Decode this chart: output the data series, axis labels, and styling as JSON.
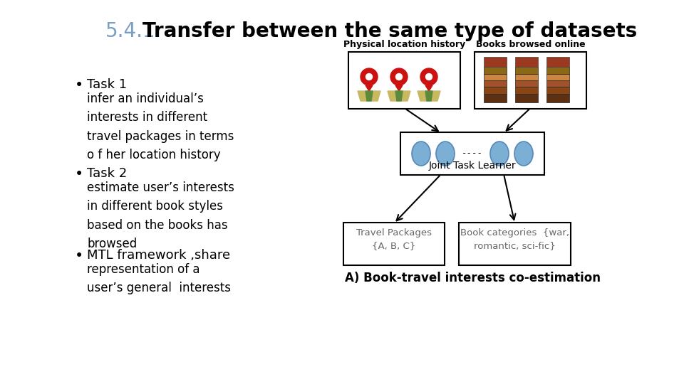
{
  "title_prefix": "5.4.1",
  "title_prefix_color": "#7B9EC4",
  "title_text": "Transfer between the same type of datasets",
  "title_color": "#000000",
  "title_fontsize": 20,
  "bg_color": "#ffffff",
  "bullet_points": [
    {
      "header": "Task 1",
      "body": "infer an individual’s\ninterests in different\ntravel packages in terms\no f her location history"
    },
    {
      "header": "Task 2",
      "body": "estimate user’s interests\nin different book styles\nbased on the books has\nbrowsed"
    },
    {
      "header": "MTL framework ,share",
      "body": "representation of a\nuser’s general  interests"
    }
  ],
  "diagram": {
    "top_left_label": "Physical location history",
    "top_right_label": "Books browsed online",
    "middle_label": "Joint Task Learner",
    "bottom_left_label": "Travel Packages\n{A, B, C}",
    "bottom_right_label": "Book categories  {war,\nromantic, sci-fic}",
    "caption": "A) Book-travel interests co-estimation"
  }
}
